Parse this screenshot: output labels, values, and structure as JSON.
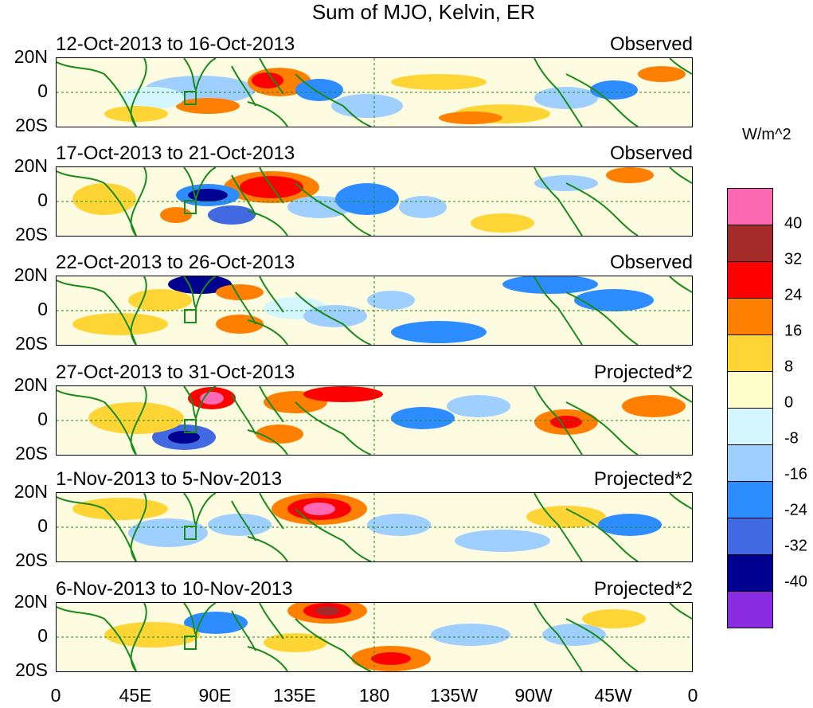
{
  "title": "Sum of MJO, Kelvin, ER",
  "panels": [
    {
      "date_range": "12-Oct-2013 to 16-Oct-2013",
      "label": "Observed"
    },
    {
      "date_range": "17-Oct-2013 to 21-Oct-2013",
      "label": "Observed"
    },
    {
      "date_range": "22-Oct-2013 to 26-Oct-2013",
      "label": "Observed"
    },
    {
      "date_range": "27-Oct-2013 to 31-Oct-2013",
      "label": "Projected*2"
    },
    {
      "date_range": "1-Nov-2013 to 5-Nov-2013",
      "label": "Projected*2"
    },
    {
      "date_range": "6-Nov-2013 to 10-Nov-2013",
      "label": "Projected*2"
    }
  ],
  "y_ticks": [
    "20N",
    "0",
    "20S"
  ],
  "x_ticks": [
    "0",
    "45E",
    "90E",
    "135E",
    "180",
    "135W",
    "90W",
    "45W",
    "0"
  ],
  "colorbar": {
    "units": "W/m^2",
    "labels": [
      "40",
      "32",
      "24",
      "16",
      "8",
      "0",
      "-8",
      "-16",
      "-24",
      "-32",
      "-40"
    ],
    "colors": [
      "#ff69b4",
      "#a52a2a",
      "#ff0000",
      "#ff7f00",
      "#ffd535",
      "#ffffcc",
      "#d4f7ff",
      "#9ecfff",
      "#2d8cff",
      "#4169e1",
      "#000090",
      "#8b2be2"
    ]
  }
}
